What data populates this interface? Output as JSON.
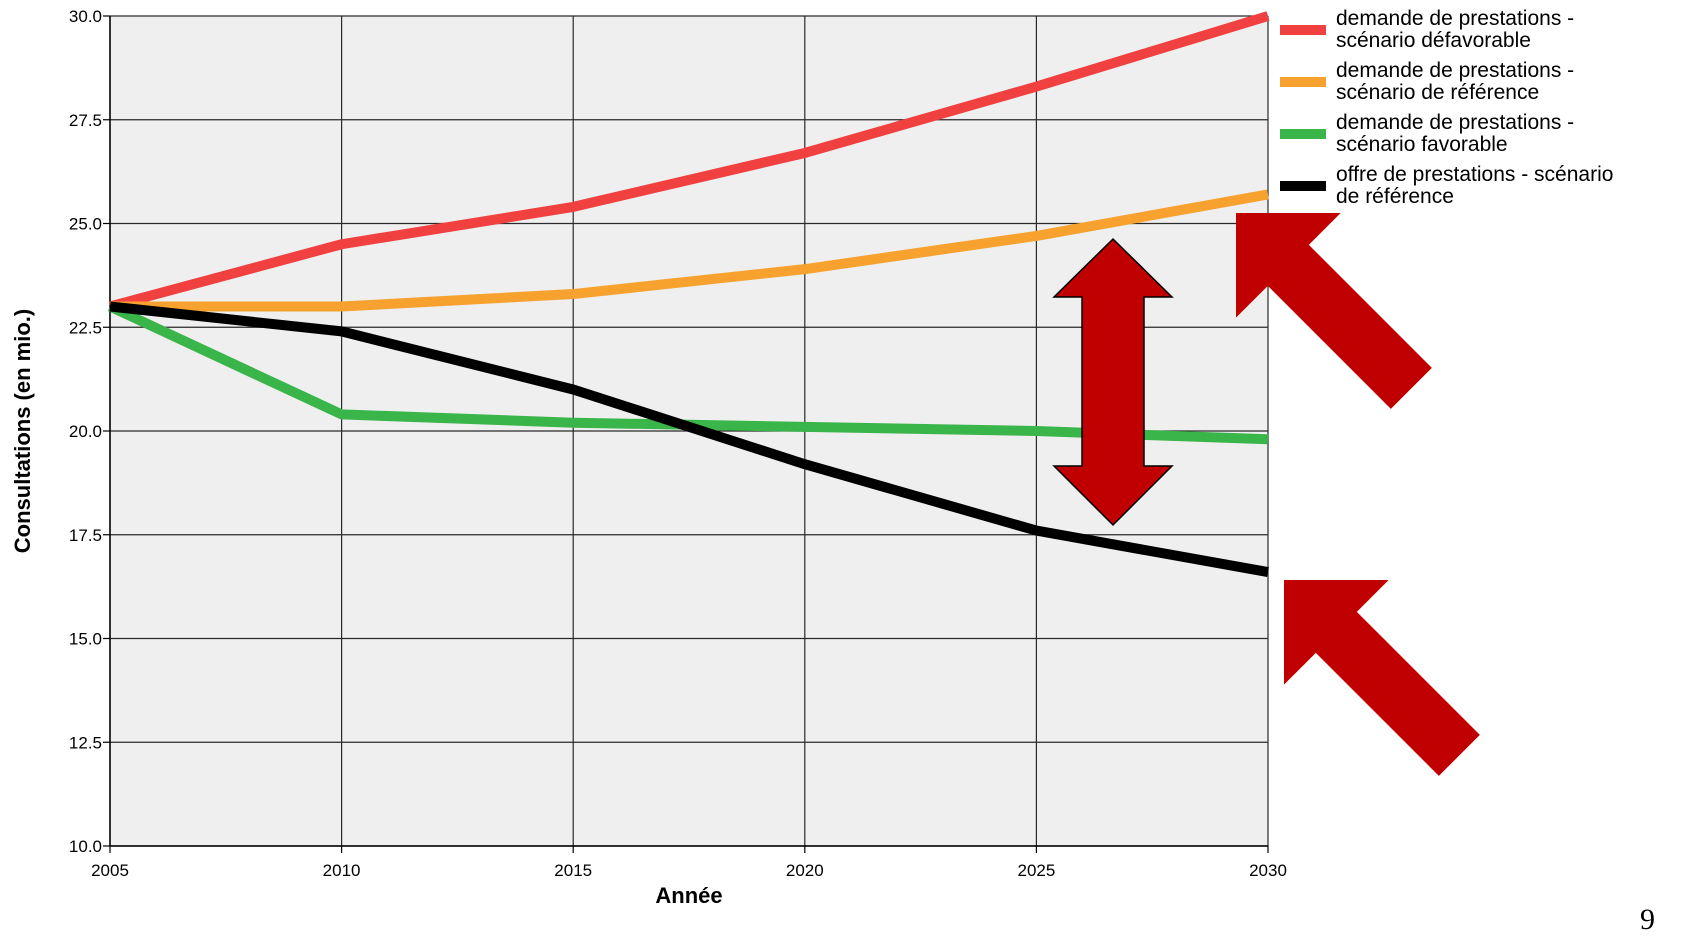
{
  "chart_data": {
    "type": "line",
    "xlabel": "Année",
    "ylabel": "Consultations (en mio.)",
    "x": [
      2005,
      2010,
      2015,
      2020,
      2025,
      2030
    ],
    "xlim": [
      2005,
      2030
    ],
    "ylim": [
      10.0,
      30.0
    ],
    "x_ticks": [
      "2005",
      "2010",
      "2015",
      "2020",
      "2025",
      "2030"
    ],
    "y_ticks": [
      "10.0",
      "12.5",
      "15.0",
      "17.5",
      "20.0",
      "22.5",
      "25.0",
      "27.5",
      "30.0"
    ],
    "grid": true,
    "plot_background": "#efefef",
    "legend_position": "right",
    "series": [
      {
        "name": "demande de prestations -\nscénario défavorable",
        "color": "#f04040",
        "values": [
          23.0,
          24.5,
          25.4,
          26.7,
          28.3,
          30.0
        ]
      },
      {
        "name": "demande de prestations -\nscénario de référence",
        "color": "#f7a12e",
        "values": [
          23.0,
          23.0,
          23.3,
          23.9,
          24.7,
          25.7
        ]
      },
      {
        "name": "demande de prestations -\nscénario favorable",
        "color": "#3ab54a",
        "values": [
          23.0,
          20.4,
          20.2,
          20.1,
          20.0,
          19.8
        ]
      },
      {
        "name": "offre de prestations - scénario\nde référence",
        "color": "#000000",
        "values": [
          23.0,
          22.4,
          21.0,
          19.2,
          17.6,
          16.6
        ]
      }
    ]
  },
  "annotations": {
    "arrow_color": "#c00000",
    "double_arrow_icon": "double-arrow-vertical",
    "pointer_arrow_icon": "arrow-up-left"
  },
  "page_number": "9"
}
